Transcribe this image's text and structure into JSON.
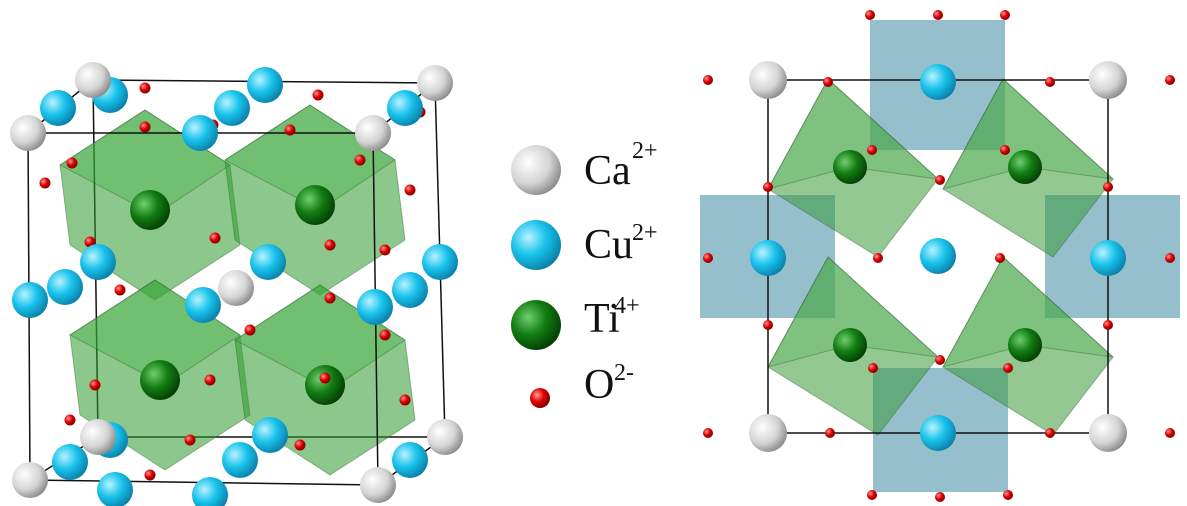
{
  "legend": [
    {
      "symbol": "Ca",
      "charge": "2+"
    },
    {
      "symbol": "Cu",
      "charge": "2+"
    },
    {
      "symbol": "Ti",
      "charge": "4+"
    },
    {
      "symbol": "O",
      "charge": "2-"
    }
  ]
}
